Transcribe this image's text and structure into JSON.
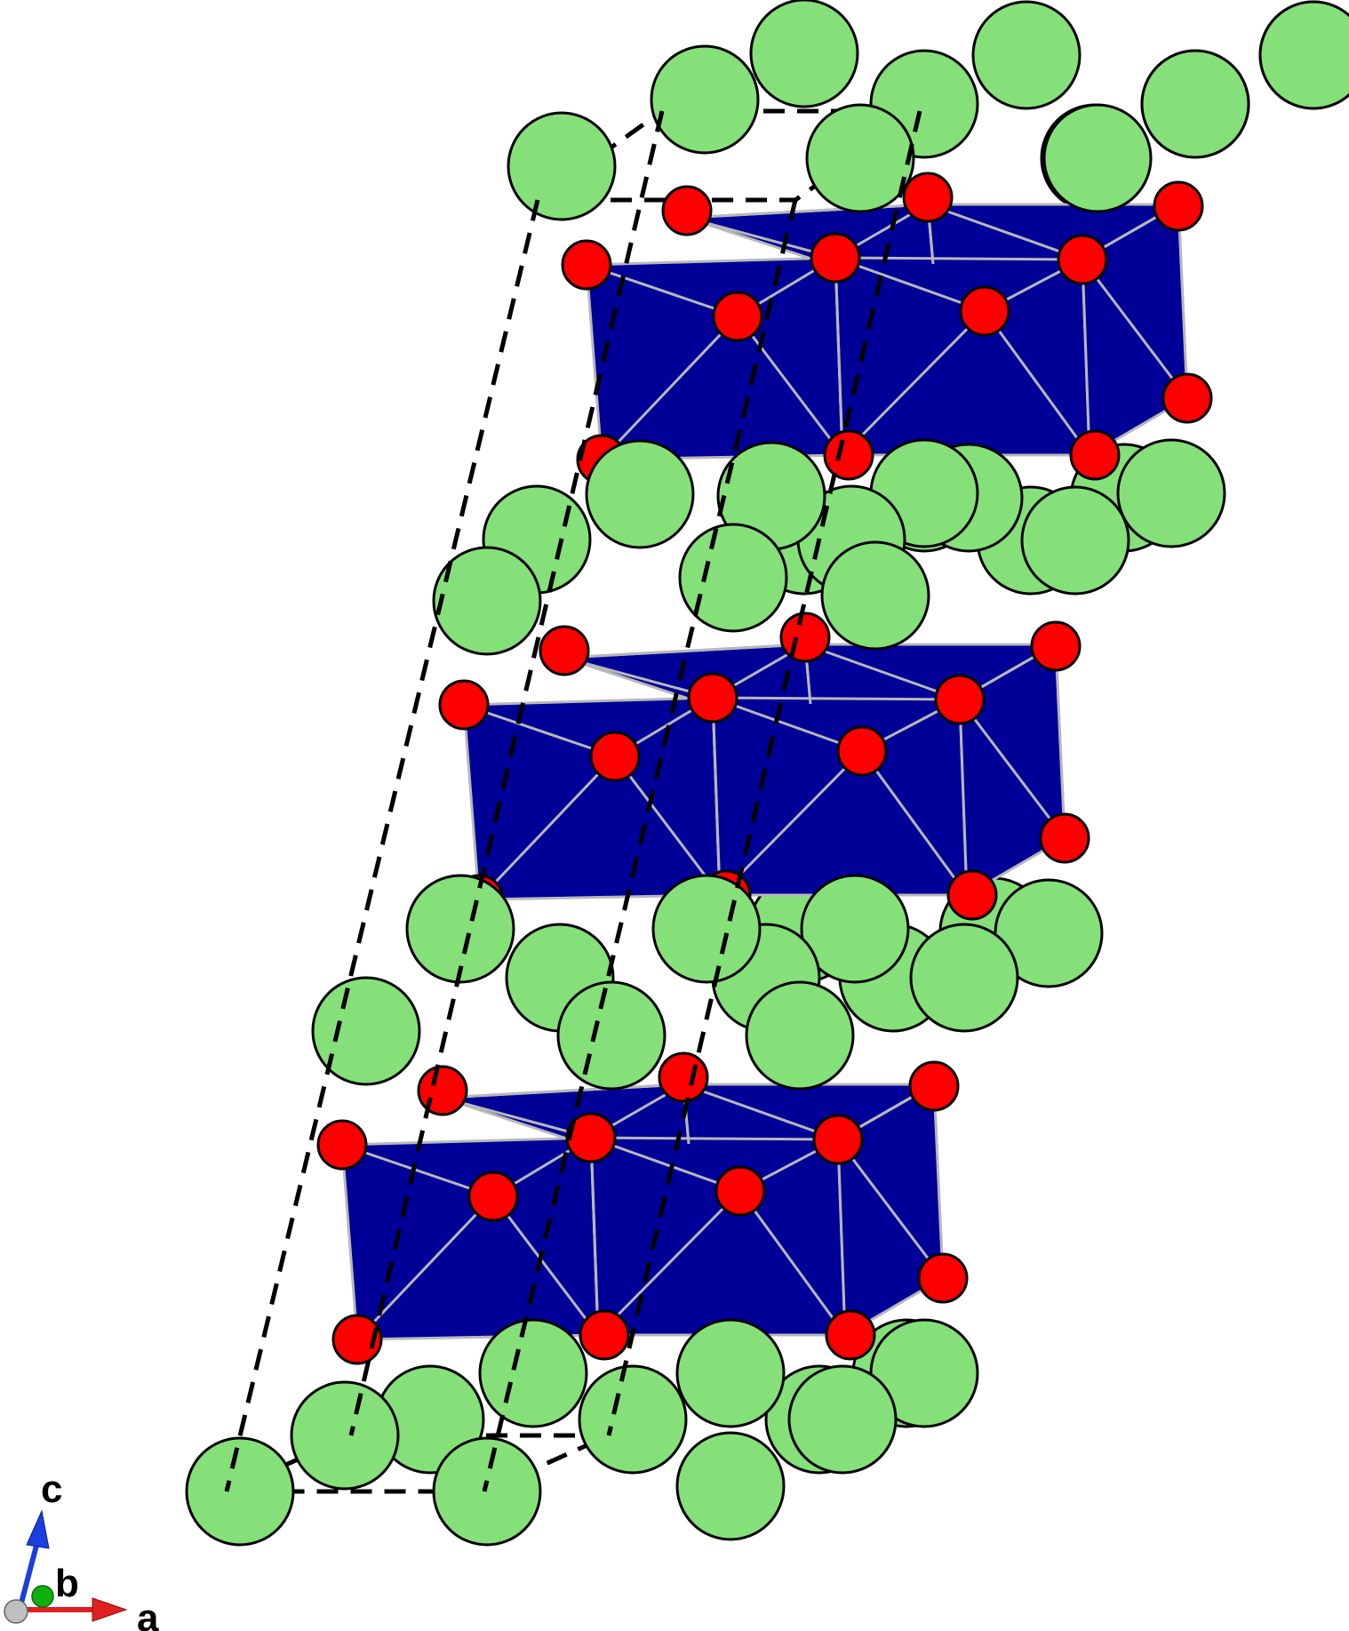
{
  "axes": {
    "a_label": "a",
    "b_label": "b",
    "c_label": "c"
  },
  "colors": {
    "background": "#ffffff",
    "polyhedra": "#000099",
    "polyhedra_edge": "#b8b8b8",
    "oxygen": "#ff0000",
    "large_cation": "#86e07a",
    "outline": "#000000",
    "axis_a": "#e02020",
    "axis_b": "#10b010",
    "axis_c": "#1a3fe0",
    "axis_origin": "#bfbfbf"
  },
  "legend_icons": {
    "axis_a": "arrow-right-icon",
    "axis_b": "sphere-icon",
    "axis_c": "arrow-up-icon"
  }
}
